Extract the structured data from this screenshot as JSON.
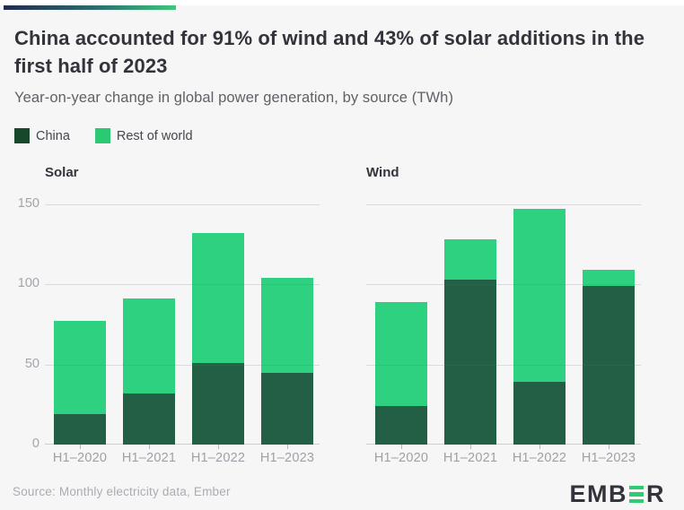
{
  "header": {
    "title": "China accounted for 91% of wind and 43% of solar additions in the first half of 2023",
    "subtitle": "Year-on-year change in global power generation, by source (TWh)"
  },
  "legend": {
    "items": [
      {
        "label": "China",
        "color": "#17482c"
      },
      {
        "label": "Rest of world",
        "color": "#2bc974"
      }
    ]
  },
  "colors": {
    "china_bar": "#225f44",
    "rest_of_world_bar": "#2ed17f",
    "accent_gradient": [
      "#232b4e",
      "#2d6f6f",
      "#3ec77a"
    ],
    "logo_green": "#2ecc71",
    "logo_dark": "#33333b"
  },
  "footer": {
    "source": "Source: Monthly electricity data, Ember",
    "brand": "EMBER",
    "brand_prefix": "EMB",
    "brand_suffix": "R"
  },
  "chart_data": [
    {
      "type": "bar",
      "stacked": true,
      "title": "Solar",
      "categories": [
        "H1–2020",
        "H1–2021",
        "H1–2022",
        "H1–2023"
      ],
      "series": [
        {
          "name": "China",
          "values": [
            19,
            32,
            51,
            45
          ]
        },
        {
          "name": "Rest of world",
          "values": [
            58,
            59,
            81,
            59
          ]
        }
      ],
      "totals": [
        77,
        91,
        132,
        104
      ],
      "xlabel": "",
      "ylabel": "TWh",
      "ylim": [
        0,
        150
      ],
      "yticks": [
        0,
        50,
        100,
        150
      ],
      "grid": true,
      "y_axis_labels_visible": true,
      "legend_position": "top-left"
    },
    {
      "type": "bar",
      "stacked": true,
      "title": "Wind",
      "categories": [
        "H1–2020",
        "H1–2021",
        "H1–2022",
        "H1–2023"
      ],
      "series": [
        {
          "name": "China",
          "values": [
            24,
            103,
            39,
            99
          ]
        },
        {
          "name": "Rest of world",
          "values": [
            65,
            25,
            108,
            10
          ]
        }
      ],
      "totals": [
        89,
        128,
        147,
        109
      ],
      "xlabel": "",
      "ylabel": "TWh",
      "ylim": [
        0,
        150
      ],
      "yticks": [
        0,
        50,
        100,
        150
      ],
      "grid": true,
      "y_axis_labels_visible": false,
      "legend_position": "top-left"
    }
  ]
}
